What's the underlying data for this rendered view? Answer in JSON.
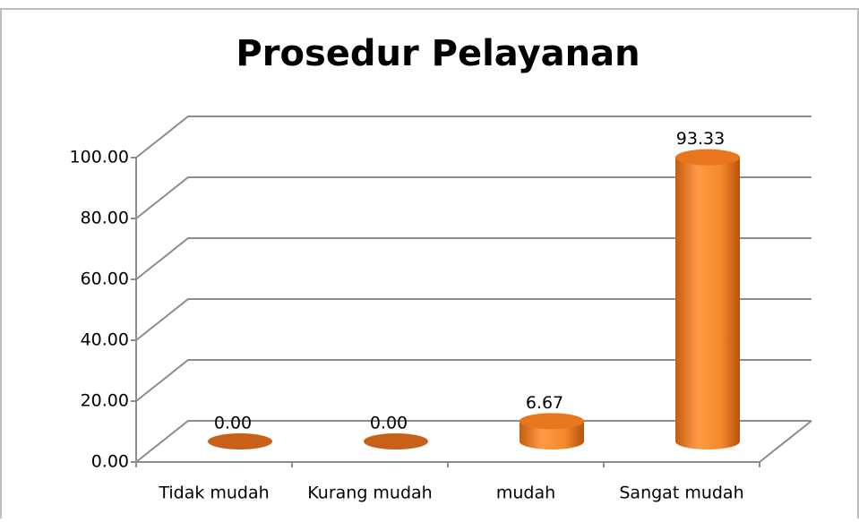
{
  "chart_data": {
    "type": "bar3d",
    "title": "Prosedur Pelayanan",
    "categories": [
      "Tidak mudah",
      "Kurang mudah",
      "mudah",
      "Sangat mudah"
    ],
    "values": [
      0,
      0,
      6.67,
      93.33
    ],
    "value_labels": [
      "0.00",
      "0.00",
      "6.67",
      "93.33"
    ],
    "color": "#f58a2f",
    "ylim": [
      0,
      100
    ],
    "yticks": [
      {
        "value": 0,
        "label": "0.00"
      },
      {
        "value": 20,
        "label": "20.00"
      },
      {
        "value": 40,
        "label": "40.00"
      },
      {
        "value": 60,
        "label": "60.00"
      },
      {
        "value": 80,
        "label": "80.00"
      },
      {
        "value": 100,
        "label": "100.00"
      }
    ],
    "grid": true
  }
}
